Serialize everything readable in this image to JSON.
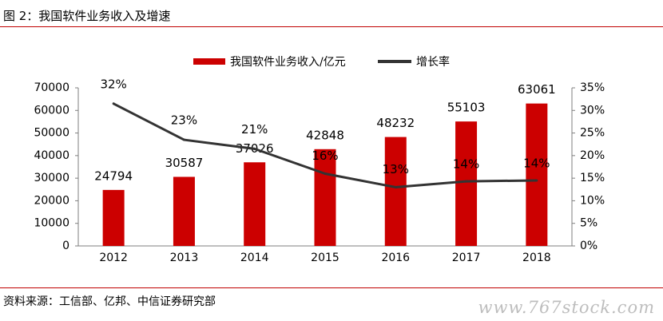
{
  "figure_title": "图 2：我国软件业务收入及增速",
  "source_note": "资料来源：工信部、亿邦、中信证券研究部",
  "watermark": "www.767stock.com",
  "colors": {
    "bar": "#cc0000",
    "line": "#333333",
    "rule": "#c00000"
  },
  "chart_data": {
    "type": "bar+line",
    "categories": [
      "2012",
      "2013",
      "2014",
      "2015",
      "2016",
      "2017",
      "2018"
    ],
    "series": [
      {
        "name": "我国软件业务收入/亿元",
        "type": "bar",
        "axis": "left",
        "values": [
          24794,
          30587,
          37026,
          42848,
          48232,
          55103,
          63061
        ],
        "labels": [
          "24794",
          "30587",
          "37026",
          "42848",
          "48232",
          "55103",
          "63061"
        ]
      },
      {
        "name": "增长率",
        "type": "line",
        "axis": "right",
        "values": [
          0.315,
          0.235,
          0.215,
          0.16,
          0.13,
          0.143,
          0.145
        ],
        "labels": [
          "32%",
          "23%",
          "21%",
          "16%",
          "13%",
          "14%",
          "14%"
        ]
      }
    ],
    "y_left": {
      "min": 0,
      "max": 70000,
      "ticks": [
        "0",
        "10000",
        "20000",
        "30000",
        "40000",
        "50000",
        "60000",
        "70000"
      ]
    },
    "y_right": {
      "min": 0,
      "max": 0.35,
      "ticks": [
        "0%",
        "5%",
        "10%",
        "15%",
        "20%",
        "25%",
        "30%",
        "35%"
      ]
    },
    "legend_position": "top-center",
    "grid": false
  }
}
